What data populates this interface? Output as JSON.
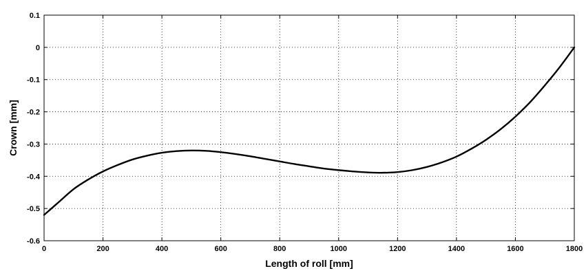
{
  "chart_data": {
    "type": "line",
    "title": "",
    "xlabel": "Length of roll [mm]",
    "ylabel": "Crown [mm]",
    "xlim": [
      0,
      1800
    ],
    "ylim": [
      -0.6,
      0.1
    ],
    "xticks": [
      0,
      200,
      400,
      600,
      800,
      1000,
      1200,
      1400,
      1600,
      1800
    ],
    "yticks": [
      -0.6,
      -0.5,
      -0.4,
      -0.3,
      -0.2,
      -0.1,
      0,
      0.1
    ],
    "xtick_labels": [
      "0",
      "200",
      "400",
      "600",
      "800",
      "1000",
      "1200",
      "1400",
      "1600",
      "1800"
    ],
    "ytick_labels": [
      "-0.6",
      "-0.5",
      "-0.4",
      "-0.3",
      "-0.2",
      "-0.1",
      "0",
      "0.1"
    ],
    "grid": true,
    "series": [
      {
        "color": "#000000",
        "x": [
          0,
          50,
          100,
          150,
          200,
          250,
          300,
          350,
          400,
          450,
          500,
          550,
          600,
          650,
          700,
          750,
          800,
          850,
          900,
          950,
          1000,
          1050,
          1100,
          1150,
          1200,
          1250,
          1300,
          1350,
          1400,
          1450,
          1500,
          1550,
          1600,
          1650,
          1700,
          1750,
          1800
        ],
        "y": [
          -0.52,
          -0.48,
          -0.44,
          -0.41,
          -0.385,
          -0.365,
          -0.348,
          -0.336,
          -0.327,
          -0.322,
          -0.32,
          -0.321,
          -0.325,
          -0.331,
          -0.338,
          -0.346,
          -0.354,
          -0.362,
          -0.369,
          -0.376,
          -0.381,
          -0.385,
          -0.388,
          -0.389,
          -0.387,
          -0.381,
          -0.371,
          -0.357,
          -0.339,
          -0.315,
          -0.287,
          -0.254,
          -0.215,
          -0.17,
          -0.118,
          -0.062,
          0.0
        ]
      }
    ]
  }
}
